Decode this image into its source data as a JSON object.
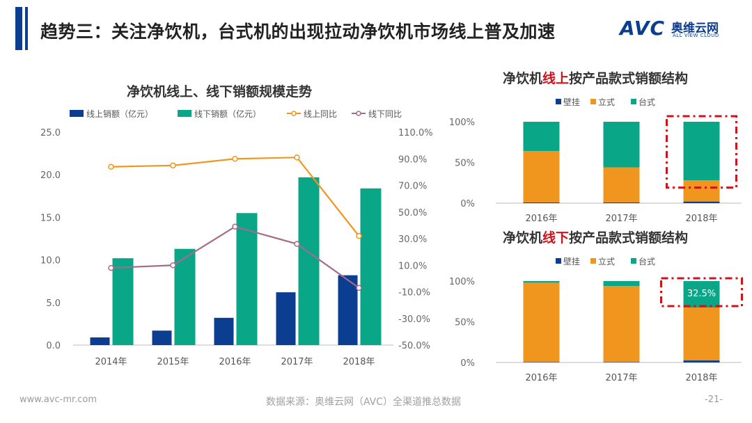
{
  "slide": {
    "title": "趋势三：关注净饮机，台式机的出现拉动净饮机市场线上普及加速",
    "logo_text": "AVC",
    "logo_cn": "奥维云网",
    "logo_en": "ALL VIEW CLOUD",
    "footer_left": "www.avc-mr.com",
    "footer_source": "数据来源：奥维云网（AVC）全渠道推总数据",
    "page_number": "-21-"
  },
  "colors": {
    "navy": "#0b3d91",
    "teal": "#0aa688",
    "orange": "#f0961e",
    "purple": "#a66a8a",
    "red": "#d0121b"
  },
  "chart_data": [
    {
      "type": "bar",
      "title": "净饮机线上、线下销额规模走势",
      "categories": [
        "2014年",
        "2015年",
        "2016年",
        "2017年",
        "2018年"
      ],
      "series": [
        {
          "name": "线上销额（亿元）",
          "axis": "left",
          "values": [
            0.9,
            1.7,
            3.2,
            6.2,
            8.2
          ]
        },
        {
          "name": "线下销额（亿元）",
          "axis": "left",
          "values": [
            10.2,
            11.3,
            15.5,
            19.7,
            18.4
          ]
        },
        {
          "name": "线上同比",
          "type": "line",
          "axis": "right",
          "values": [
            84,
            85,
            90,
            91,
            32
          ]
        },
        {
          "name": "线下同比",
          "type": "line",
          "axis": "right",
          "values": [
            8,
            10,
            39,
            26,
            -7
          ]
        }
      ],
      "ylim": [
        0,
        25
      ],
      "yticks": [
        "0.0",
        "5.0",
        "10.0",
        "15.0",
        "20.0",
        "25.0"
      ],
      "y2lim": [
        -50,
        110
      ],
      "y2ticks": [
        "-50.0%",
        "-30.0%",
        "-10.0%",
        "10.0%",
        "30.0%",
        "50.0%",
        "70.0%",
        "90.0%",
        "110.0%"
      ]
    },
    {
      "type": "bar",
      "stacked": true,
      "title_parts": [
        "净饮机",
        "线上",
        "按产品款式销额结构"
      ],
      "categories": [
        "2016年",
        "2017年",
        "2018年"
      ],
      "series": [
        {
          "name": "壁挂",
          "values": [
            1,
            1,
            2
          ]
        },
        {
          "name": "立式",
          "values": [
            63,
            43,
            26
          ]
        },
        {
          "name": "台式",
          "values": [
            36,
            56,
            72
          ]
        }
      ],
      "yticks": [
        "0%",
        "50%",
        "100%"
      ],
      "highlight_category": "2018年"
    },
    {
      "type": "bar",
      "stacked": true,
      "title_parts": [
        "净饮机",
        "线下",
        "按产品款式销额结构"
      ],
      "categories": [
        "2016年",
        "2017年",
        "2018年"
      ],
      "series": [
        {
          "name": "壁挂",
          "values": [
            0.5,
            0.5,
            2.5
          ]
        },
        {
          "name": "立式",
          "values": [
            97.5,
            93.5,
            65.0
          ]
        },
        {
          "name": "台式",
          "values": [
            2.0,
            6.0,
            32.5
          ]
        }
      ],
      "yticks": [
        "0%",
        "50%",
        "100%"
      ],
      "highlight_category": "2018年",
      "annotation": "32.5%"
    }
  ]
}
